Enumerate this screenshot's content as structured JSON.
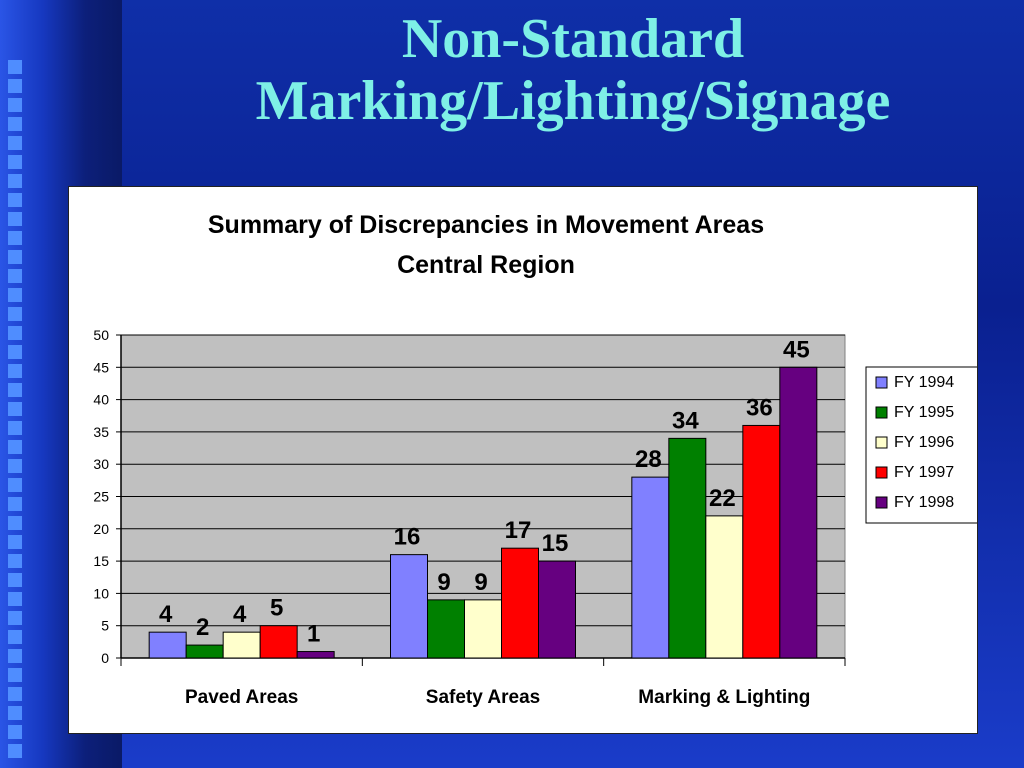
{
  "slide": {
    "title_line1": "Non-Standard",
    "title_line2": "Marking/Lighting/Signage"
  },
  "colors": {
    "plot_bg": "#c0c0c0",
    "title_text": "#7ef0e6"
  },
  "chart_data": {
    "type": "bar",
    "title": "Summary of Discrepancies in Movement Areas",
    "subtitle": "Central Region",
    "xlabel": "",
    "ylabel": "",
    "categories": [
      "Paved Areas",
      "Safety Areas",
      "Marking & Lighting"
    ],
    "series": [
      {
        "name": "FY 1994",
        "color": "#8080ff",
        "values": [
          4,
          16,
          28
        ]
      },
      {
        "name": "FY 1995",
        "color": "#008000",
        "values": [
          2,
          9,
          34
        ]
      },
      {
        "name": "FY 1996",
        "color": "#ffffcc",
        "values": [
          4,
          9,
          22
        ]
      },
      {
        "name": "FY 1997",
        "color": "#ff0000",
        "values": [
          5,
          17,
          36
        ]
      },
      {
        "name": "FY 1998",
        "color": "#660080",
        "values": [
          1,
          15,
          45
        ]
      }
    ],
    "ylim": [
      0,
      50
    ],
    "yticks": [
      0,
      5,
      10,
      15,
      20,
      25,
      30,
      35,
      40,
      45,
      50
    ],
    "grid": true,
    "legend": "right"
  }
}
